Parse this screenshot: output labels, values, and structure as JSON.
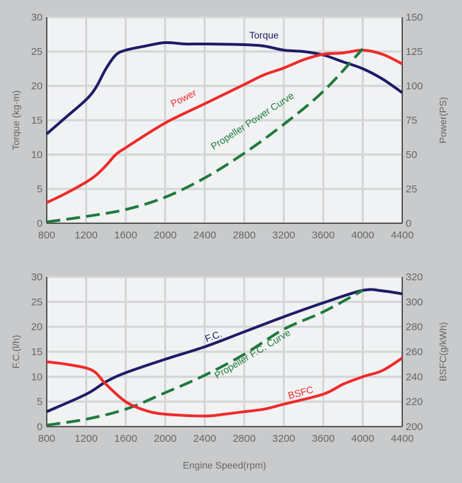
{
  "chart_data": [
    {
      "type": "line",
      "title": "",
      "xlabel": "",
      "ylabel": "Torque (kg·m)",
      "y2label": "Power(PS)",
      "xlim": [
        800,
        4400
      ],
      "ylim": [
        0,
        30
      ],
      "y2lim": [
        0,
        150
      ],
      "xticks": [
        "800",
        "1200",
        "1600",
        "2000",
        "2400",
        "2800",
        "3200",
        "3600",
        "4000",
        "4400"
      ],
      "yticks": [
        "0",
        "5",
        "10",
        "15",
        "20",
        "25",
        "30"
      ],
      "y2ticks": [
        "0",
        "25",
        "50",
        "75",
        "100",
        "125",
        "150"
      ],
      "grid": true,
      "series": [
        {
          "name": "Torque",
          "axis": "left",
          "color": "#1c1c66",
          "dash": false,
          "x": [
            800,
            1000,
            1200,
            1300,
            1400,
            1500,
            1600,
            1800,
            2000,
            2200,
            2400,
            2800,
            3000,
            3200,
            3400,
            3600,
            3800,
            4000,
            4200,
            4400
          ],
          "y": [
            13,
            15.5,
            18,
            19.8,
            22.5,
            24.5,
            25.2,
            25.8,
            26.3,
            26.1,
            26.1,
            26,
            25.8,
            25.2,
            25,
            24.5,
            23.5,
            22.5,
            21,
            19
          ]
        },
        {
          "name": "Power",
          "axis": "right",
          "color": "#ee2a2a",
          "dash": false,
          "x": [
            800,
            1000,
            1200,
            1300,
            1400,
            1500,
            1600,
            2000,
            2400,
            2800,
            3000,
            3200,
            3400,
            3600,
            3800,
            4000,
            4200,
            4400
          ],
          "y": [
            15,
            22,
            30,
            35,
            42,
            50,
            55,
            73,
            87,
            101,
            108,
            113,
            119,
            123,
            124,
            126,
            123,
            116
          ]
        },
        {
          "name": "Propeller Power Curve",
          "axis": "right",
          "color": "#1e7a3c",
          "dash": true,
          "x": [
            800,
            1200,
            1600,
            2000,
            2400,
            2800,
            3200,
            3600,
            4000
          ],
          "y": [
            1,
            5,
            10,
            19,
            33,
            51,
            72,
            96,
            127
          ]
        }
      ]
    },
    {
      "type": "line",
      "title": "",
      "xlabel": "Engine Speed(rpm)",
      "ylabel": "F.C.(l/h)",
      "y2label": "BSFC(g/kWh)",
      "xlim": [
        800,
        4400
      ],
      "ylim": [
        0,
        30
      ],
      "y2lim": [
        200,
        320
      ],
      "xticks": [
        "800",
        "1200",
        "1600",
        "2000",
        "2400",
        "2800",
        "3200",
        "3600",
        "4000",
        "4400"
      ],
      "yticks": [
        "0",
        "5",
        "10",
        "15",
        "20",
        "25",
        "30"
      ],
      "y2ticks": [
        "200",
        "220",
        "240",
        "260",
        "280",
        "300",
        "320"
      ],
      "grid": true,
      "series": [
        {
          "name": "F.C.",
          "axis": "left",
          "color": "#1c1c66",
          "dash": false,
          "x": [
            800,
            1200,
            1400,
            1600,
            2000,
            2400,
            2800,
            3200,
            3600,
            4000,
            4200,
            4400
          ],
          "y": [
            3,
            6.5,
            9,
            10.8,
            13.5,
            16,
            19,
            22,
            24.8,
            27.3,
            27.2,
            26.6
          ]
        },
        {
          "name": "Propeller F.C. Curve",
          "axis": "left",
          "color": "#1e7a3c",
          "dash": true,
          "x": [
            800,
            1200,
            1600,
            2000,
            2400,
            2800,
            3200,
            3600,
            4000
          ],
          "y": [
            0.3,
            1.5,
            3.5,
            6.8,
            10.3,
            14.5,
            19.5,
            23,
            27.3
          ]
        },
        {
          "name": "BSFC",
          "axis": "right",
          "color": "#ee2a2a",
          "dash": false,
          "x": [
            800,
            1000,
            1200,
            1300,
            1400,
            1600,
            1800,
            2000,
            2400,
            2600,
            2800,
            3000,
            3200,
            3600,
            3800,
            4000,
            4200,
            4400
          ],
          "y": [
            252,
            250,
            247,
            243,
            234,
            220,
            213,
            210,
            208.5,
            210,
            212,
            214,
            218,
            226,
            234,
            240,
            245,
            255
          ]
        }
      ]
    }
  ]
}
